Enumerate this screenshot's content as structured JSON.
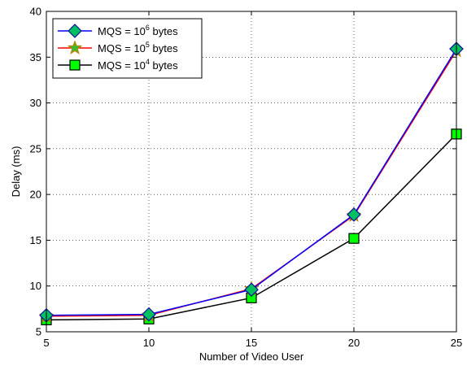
{
  "chart_data": {
    "type": "line",
    "x": [
      5,
      10,
      15,
      20,
      25
    ],
    "xlabel": "Number of Video User",
    "ylabel": "Delay (ms)",
    "xlim": [
      5,
      25
    ],
    "ylim": [
      5,
      40
    ],
    "xticks": [
      5,
      10,
      15,
      20,
      25
    ],
    "yticks": [
      5,
      10,
      15,
      20,
      25,
      30,
      35,
      40
    ],
    "grid": true,
    "legend_position": "top-left",
    "series": [
      {
        "name_base": "MQS = 10",
        "name_exp": "6",
        "name_tail": " bytes",
        "values": [
          6.8,
          6.9,
          9.6,
          17.8,
          35.9
        ],
        "line_color": "#0000ff",
        "marker": "diamond",
        "marker_fill": "#00c060",
        "marker_edge": "#1010a0"
      },
      {
        "name_base": "MQS = 10",
        "name_exp": "5",
        "name_tail": " bytes",
        "values": [
          6.7,
          6.8,
          9.7,
          17.7,
          35.7
        ],
        "line_color": "#ff0000",
        "marker": "star",
        "marker_fill": "#30c030",
        "marker_edge": "#c08000"
      },
      {
        "name_base": "MQS = 10",
        "name_exp": "4",
        "name_tail": " bytes",
        "values": [
          6.3,
          6.4,
          8.7,
          15.2,
          26.6
        ],
        "line_color": "#000000",
        "marker": "square",
        "marker_fill": "#00ff00",
        "marker_edge": "#000000"
      }
    ]
  }
}
